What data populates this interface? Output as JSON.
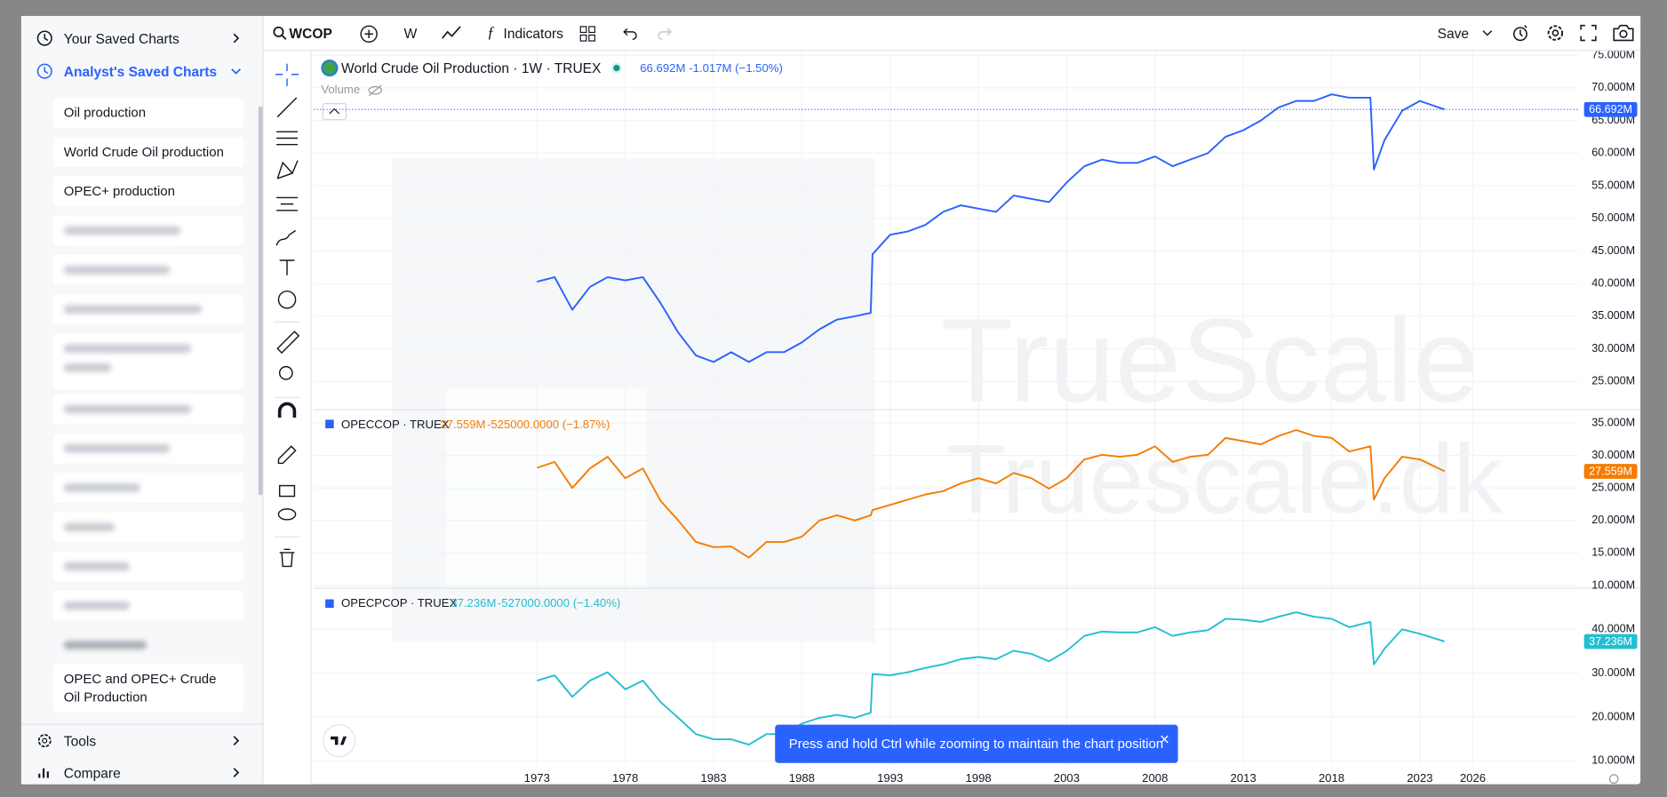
{
  "sidebar": {
    "sections": [
      {
        "label": "Your Saved Charts"
      },
      {
        "label": "Analyst's Saved Charts",
        "items": [
          "Oil production",
          "World Crude Oil production",
          "OPEC+ production",
          "OPEC and OPEC+ Crude Oil Production"
        ]
      }
    ],
    "footer": [
      "Tools",
      "Compare"
    ]
  },
  "toolbar": {
    "symbol": "WCOP",
    "interval": "W",
    "indicators": "Indicators",
    "save": "Save"
  },
  "volume_label": "Volume",
  "watermark": [
    "TrueScale",
    "Truescale.dk"
  ],
  "toast": "Press and hold Ctrl while zooming to maintain the chart position",
  "chart_data": [
    {
      "type": "line",
      "x": [
        1973,
        1974,
        1975,
        1976,
        1977,
        1978,
        1979,
        1980,
        1981,
        1982,
        1983,
        1984,
        1985,
        1986,
        1987,
        1988,
        1989,
        1990,
        1991,
        1991.9,
        1992,
        1993,
        1994,
        1995,
        1996,
        1997,
        1998,
        1999,
        2000,
        2001,
        2002,
        2003,
        2004,
        2005,
        2006,
        2007,
        2008,
        2009,
        2010,
        2011,
        2012,
        2013,
        2014,
        2015,
        2016,
        2017,
        2018,
        2019,
        2020.2,
        2020.4,
        2021,
        2022,
        2023,
        2024.4
      ],
      "series": [
        {
          "name": "World Crude Oil Production · 1W · TRUEX",
          "color": "#2962ff",
          "values": [
            40.3,
            41,
            36,
            39.5,
            41,
            40.5,
            41,
            37,
            32.5,
            29,
            28,
            29.5,
            28,
            29.5,
            29.5,
            31,
            33,
            34.5,
            35,
            35.5,
            44.5,
            47.5,
            48,
            49,
            51,
            52,
            51.5,
            51,
            53.5,
            53,
            52.5,
            55.5,
            58,
            59,
            58.5,
            58.5,
            59.5,
            58,
            59,
            60,
            62.5,
            63.5,
            65,
            67,
            68,
            68,
            69,
            68.5,
            68.5,
            57.5,
            62,
            66.5,
            68,
            66.692
          ],
          "last_label": "66.692M",
          "change": "-1.017M (−1.50%)"
        }
      ],
      "xlim": [
        1960.35,
        2032
      ],
      "ylim": [
        20.77,
        75.65
      ],
      "yticks": [
        {
          "value": 25,
          "label": "25.000M"
        },
        {
          "value": 30,
          "label": "30.000M"
        },
        {
          "value": 35,
          "label": "35.000M"
        },
        {
          "value": 40,
          "label": "40.000M"
        },
        {
          "value": 45,
          "label": "45.000M"
        },
        {
          "value": 50,
          "label": "50.000M"
        },
        {
          "value": 55,
          "label": "55.000M"
        },
        {
          "value": 60,
          "label": "60.000M"
        },
        {
          "value": 65,
          "label": "65.000M"
        },
        {
          "value": 70,
          "label": "70.000M"
        },
        {
          "value": 75,
          "label": "75.000M"
        }
      ],
      "price_line": true,
      "grid": true
    },
    {
      "type": "line",
      "x": [
        1973,
        1974,
        1975,
        1976,
        1977,
        1978,
        1979,
        1980,
        1981,
        1982,
        1983,
        1984,
        1985,
        1986,
        1987,
        1988,
        1989,
        1990,
        1991,
        1991.9,
        1992,
        1993,
        1994,
        1995,
        1996,
        1997,
        1998,
        1999,
        2000,
        2001,
        2002,
        2003,
        2004,
        2005,
        2006,
        2007,
        2008,
        2009,
        2010,
        2011,
        2012,
        2013,
        2014,
        2015,
        2016,
        2017,
        2018,
        2019,
        2020.2,
        2020.4,
        2021,
        2022,
        2023,
        2024.4
      ],
      "series": [
        {
          "name": "OPECCOP · TRUEX",
          "color": "#f57c00",
          "values": [
            28.1,
            29,
            25,
            28,
            29.8,
            26.5,
            28,
            23,
            20,
            16.7,
            15.9,
            16,
            14.3,
            16.7,
            16.7,
            17.5,
            20,
            20.8,
            20,
            20.8,
            21.6,
            22.4,
            23.2,
            24,
            24.5,
            25.7,
            26.5,
            25.7,
            27.3,
            26.5,
            24.9,
            26.5,
            29.4,
            30.1,
            29.8,
            30.1,
            31.4,
            29,
            29.8,
            30.1,
            32.7,
            32.2,
            31.7,
            33,
            33.9,
            33,
            32.7,
            30.6,
            31.4,
            23.2,
            26.5,
            29.8,
            29.4,
            27.559
          ],
          "last_label": "27.559M",
          "change": "-525000.0000 (−1.87%)"
        }
      ],
      "xlim": [
        1960.35,
        2032
      ],
      "ylim": [
        9.67,
        36.96
      ],
      "yticks": [
        {
          "value": 10,
          "label": "10.000M"
        },
        {
          "value": 15,
          "label": "15.000M"
        },
        {
          "value": 20,
          "label": "20.000M"
        },
        {
          "value": 25,
          "label": "25.000M"
        },
        {
          "value": 30,
          "label": "30.000M"
        },
        {
          "value": 35,
          "label": "35.000M"
        }
      ],
      "price_line": false,
      "grid": true
    },
    {
      "type": "line",
      "x": [
        1973,
        1974,
        1975,
        1976,
        1977,
        1978,
        1979,
        1980,
        1981,
        1982,
        1983,
        1984,
        1985,
        1986,
        1987,
        1988,
        1989,
        1990,
        1991,
        1991.9,
        1992,
        1993,
        1994,
        1995,
        1996,
        1997,
        1998,
        1999,
        2000,
        2001,
        2002,
        2003,
        2004,
        2005,
        2006,
        2007,
        2008,
        2009,
        2010,
        2011,
        2012,
        2013,
        2014,
        2015,
        2016,
        2017,
        2018,
        2019,
        2020.2,
        2020.4,
        2021,
        2022,
        2023,
        2024.4
      ],
      "series": [
        {
          "name": "OPECPCOP · TRUEX",
          "color": "#22bfd3",
          "values": [
            28.3,
            29.5,
            24.6,
            28.3,
            30.2,
            26.3,
            28.3,
            23.4,
            19.8,
            16.1,
            14.9,
            14.9,
            13.7,
            16.1,
            16.1,
            18.5,
            19.8,
            20.5,
            19.8,
            21,
            29.8,
            29.5,
            30.2,
            31.2,
            32,
            33.2,
            33.7,
            33.2,
            35.1,
            34.4,
            32.7,
            35.1,
            38.5,
            39.5,
            39.3,
            39.3,
            40.5,
            38.5,
            39.3,
            39.8,
            42.4,
            42.2,
            41.7,
            42.9,
            43.9,
            42.9,
            42.4,
            40.5,
            41.7,
            32,
            35.6,
            40,
            39,
            37.236
          ],
          "last_label": "37.236M",
          "change": "-527000.0000 (−1.40%)"
        }
      ],
      "xlim": [
        1960.35,
        2032
      ],
      "ylim": [
        9.02,
        49.27
      ],
      "yticks": [
        {
          "value": 10,
          "label": "10.000M"
        },
        {
          "value": 20,
          "label": "20.000M"
        },
        {
          "value": 30,
          "label": "30.000M"
        },
        {
          "value": 40,
          "label": "40.000M"
        }
      ],
      "xticks": [
        1973,
        1978,
        1983,
        1988,
        1993,
        1998,
        2003,
        2008,
        2013,
        2018,
        2023,
        2026
      ],
      "price_line": false,
      "grid": true
    }
  ]
}
